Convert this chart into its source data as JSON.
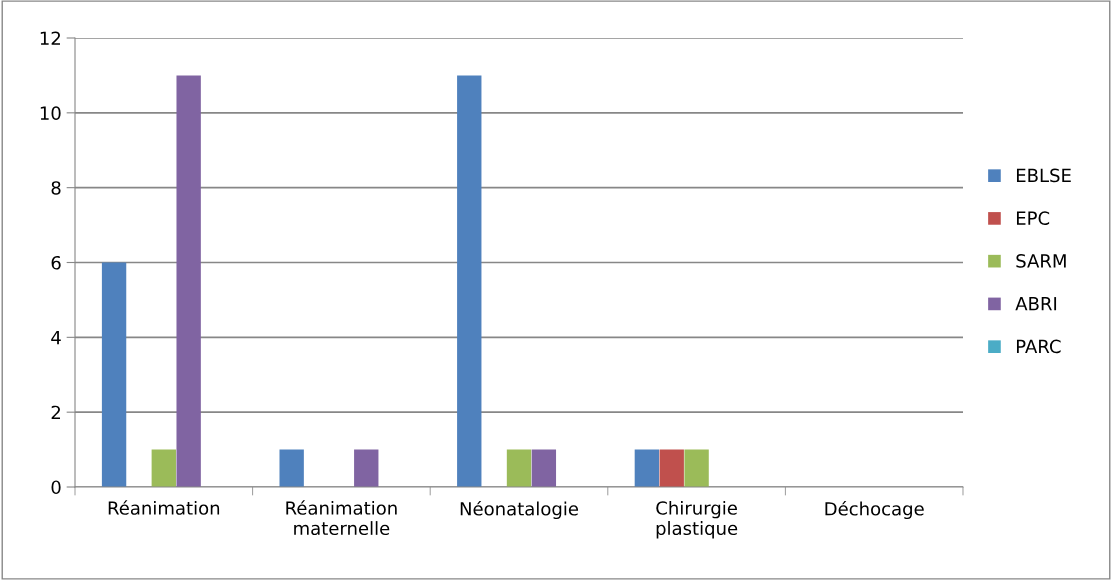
{
  "chart_data": {
    "type": "bar",
    "categories": [
      "Réanimation",
      "Réanimation\nmaternelle",
      "Néonatalogie",
      "Chirurgie\nplastique",
      "Déchocage"
    ],
    "series": [
      {
        "name": "EBLSE",
        "color": "#4f81bd",
        "values": [
          6,
          1,
          11,
          1,
          0
        ]
      },
      {
        "name": "EPC",
        "color": "#c0504d",
        "values": [
          0,
          0,
          0,
          1,
          0
        ]
      },
      {
        "name": "SARM",
        "color": "#9bbb59",
        "values": [
          1,
          0,
          1,
          1,
          0
        ]
      },
      {
        "name": "ABRI",
        "color": "#8064a2",
        "values": [
          11,
          1,
          1,
          0,
          0
        ]
      },
      {
        "name": "PARC",
        "color": "#4bacc6",
        "values": [
          0,
          0,
          0,
          0,
          0
        ]
      }
    ],
    "ylim": [
      0,
      12
    ],
    "yticks": [
      0,
      2,
      4,
      6,
      8,
      10,
      12
    ],
    "grid": "y",
    "legend": "right"
  }
}
